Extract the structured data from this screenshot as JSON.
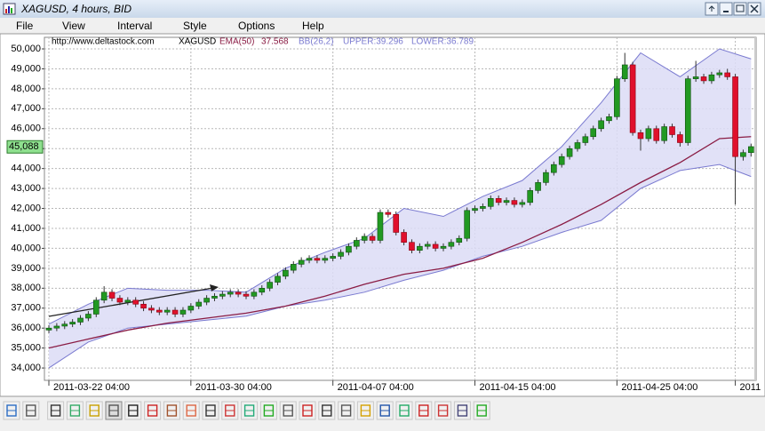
{
  "window": {
    "title": "XAGUSD, 4 hours, BID"
  },
  "menu": [
    "File",
    "View",
    "Interval",
    "Style",
    "Options",
    "Help"
  ],
  "chart_data": {
    "type": "candlestick",
    "info": {
      "url": "http://www.deltastock.com",
      "symbol": "XAGUSD",
      "ema_value": 37.568,
      "bb_label": "BB(26,2)",
      "upper_label": "UPPER:39.296",
      "lower_label": "LOWER:36.789"
    },
    "categories": [
      "2011-03-22 04:00",
      null,
      null,
      null,
      null,
      null,
      null,
      null,
      null,
      null,
      null,
      null,
      null,
      null,
      null,
      null,
      null,
      null,
      "2011-03-30 04:00",
      null,
      null,
      null,
      null,
      null,
      null,
      null,
      null,
      null,
      null,
      null,
      null,
      null,
      null,
      null,
      null,
      null,
      "2011-04-07 04:00",
      null,
      null,
      null,
      null,
      null,
      null,
      null,
      null,
      null,
      null,
      null,
      null,
      null,
      null,
      null,
      null,
      null,
      "2011-04-15 04:00",
      null,
      null,
      null,
      null,
      null,
      null,
      null,
      null,
      null,
      null,
      null,
      null,
      null,
      null,
      null,
      null,
      null,
      "2011-04-25 04:00",
      null,
      null,
      null,
      null,
      null,
      null,
      null,
      null,
      null,
      null,
      null,
      null,
      null,
      null,
      "2011",
      null,
      null
    ],
    "open": [
      35900,
      36000,
      36100,
      36200,
      36300,
      36500,
      36700,
      37400,
      37800,
      37500,
      37300,
      37400,
      37200,
      37000,
      36900,
      36800,
      36900,
      36700,
      36900,
      37100,
      37300,
      37500,
      37600,
      37700,
      37800,
      37700,
      37600,
      37800,
      38000,
      38300,
      38600,
      38900,
      39200,
      39400,
      39500,
      39400,
      39500,
      39600,
      39800,
      40100,
      40400,
      40600,
      40400,
      41800,
      41700,
      40800,
      40300,
      39900,
      40100,
      40200,
      40000,
      40100,
      40300,
      40500,
      41900,
      42000,
      42100,
      42500,
      42300,
      42400,
      42200,
      42300,
      42900,
      43300,
      43800,
      44200,
      44600,
      45000,
      45300,
      45600,
      46000,
      46400,
      46600,
      48500,
      49200,
      45800,
      45500,
      46000,
      45400,
      46100,
      45700,
      45300,
      48500,
      48600,
      48400,
      48700,
      48800,
      48600,
      44600,
      44800
    ],
    "high": [
      36150,
      36250,
      36350,
      36450,
      36650,
      36850,
      37550,
      38100,
      37950,
      37650,
      37550,
      37550,
      37350,
      37150,
      37050,
      37050,
      37050,
      37050,
      37250,
      37450,
      37650,
      37750,
      37850,
      37950,
      37950,
      37850,
      37950,
      38150,
      38450,
      38750,
      39050,
      39350,
      39550,
      39650,
      39650,
      39650,
      39750,
      39950,
      40250,
      40550,
      40750,
      40750,
      41950,
      41950,
      41850,
      40950,
      40450,
      40250,
      40350,
      40350,
      40250,
      40450,
      40650,
      42050,
      42150,
      42250,
      42650,
      42650,
      42550,
      42550,
      42450,
      43050,
      43450,
      43950,
      44350,
      44750,
      45150,
      45450,
      45750,
      46150,
      46550,
      46750,
      48650,
      49800,
      49350,
      45950,
      46150,
      46150,
      46250,
      46250,
      45850,
      48650,
      49400,
      48750,
      48850,
      48950,
      49000,
      48750,
      44950,
      45250
    ],
    "low": [
      35750,
      35850,
      35950,
      36050,
      36150,
      36350,
      36550,
      37250,
      37350,
      37150,
      37150,
      37050,
      36850,
      36750,
      36650,
      36650,
      36550,
      36550,
      36750,
      36950,
      37150,
      37350,
      37450,
      37550,
      37550,
      37450,
      37450,
      37650,
      37850,
      38150,
      38450,
      38750,
      39050,
      39250,
      39250,
      39250,
      39350,
      39450,
      39650,
      39950,
      40250,
      40250,
      40250,
      41550,
      40650,
      40150,
      39750,
      39750,
      39950,
      39850,
      39850,
      39950,
      40150,
      40350,
      41750,
      41850,
      41950,
      42150,
      42150,
      42050,
      42050,
      42150,
      42750,
      43150,
      43650,
      44050,
      44450,
      44850,
      45150,
      45450,
      45850,
      46250,
      46450,
      48350,
      45650,
      44900,
      45350,
      45250,
      45250,
      45550,
      45100,
      45150,
      48350,
      48250,
      48250,
      48550,
      48450,
      42200,
      44400,
      44600
    ],
    "close": [
      36000,
      36100,
      36200,
      36300,
      36500,
      36700,
      37400,
      37800,
      37500,
      37300,
      37400,
      37200,
      37000,
      36900,
      36800,
      36900,
      36700,
      36900,
      37100,
      37300,
      37500,
      37600,
      37700,
      37800,
      37700,
      37600,
      37800,
      38000,
      38300,
      38600,
      38900,
      39200,
      39400,
      39500,
      39400,
      39500,
      39600,
      39800,
      40100,
      40400,
      40600,
      40400,
      41800,
      41700,
      40800,
      40300,
      39900,
      40100,
      40200,
      40000,
      40100,
      40300,
      40500,
      41900,
      42000,
      42100,
      42500,
      42300,
      42400,
      42200,
      42300,
      42900,
      43300,
      43800,
      44200,
      44600,
      45000,
      45300,
      45600,
      46000,
      46400,
      46600,
      48500,
      49200,
      45800,
      45500,
      46000,
      45400,
      46100,
      45700,
      45300,
      48500,
      48600,
      48400,
      48700,
      48800,
      48600,
      44600,
      44800,
      45100
    ],
    "up_color": "#229922",
    "down_color": "#e0102c",
    "series": [
      {
        "name": "EMA(50)",
        "color": "#8a1c44",
        "x": [
          0,
          5,
          10,
          15,
          20,
          25,
          30,
          35,
          40,
          45,
          50,
          55,
          60,
          65,
          70,
          75,
          80,
          85,
          89
        ],
        "values": [
          35000,
          35450,
          35900,
          36250,
          36500,
          36750,
          37100,
          37600,
          38200,
          38700,
          39000,
          39500,
          40300,
          41200,
          42200,
          43300,
          44300,
          45500,
          45600
        ]
      }
    ],
    "bands": {
      "color": "#7a7ad0",
      "fill": "#dcdcf6",
      "x": [
        0,
        5,
        10,
        15,
        20,
        25,
        30,
        35,
        40,
        45,
        50,
        55,
        60,
        65,
        70,
        75,
        80,
        85,
        89
      ],
      "upper": [
        36200,
        37200,
        38000,
        37900,
        37900,
        37800,
        39000,
        39800,
        40500,
        42000,
        41600,
        42600,
        43400,
        45100,
        47300,
        49800,
        48600,
        50000,
        49500
      ],
      "lower": [
        34000,
        35300,
        36000,
        36200,
        36400,
        36600,
        37100,
        37400,
        37800,
        38400,
        38900,
        39600,
        40100,
        40800,
        41400,
        43000,
        43900,
        44200,
        43600
      ]
    },
    "current_price": {
      "value": 45088,
      "label": "45,088"
    },
    "ylim": [
      33380,
      50580
    ],
    "yticks": [
      {
        "value": 34000,
        "label": "34,000"
      },
      {
        "value": 35000,
        "label": "35,000"
      },
      {
        "value": 36000,
        "label": "36,000"
      },
      {
        "value": 37000,
        "label": "37,000"
      },
      {
        "value": 38000,
        "label": "38,000"
      },
      {
        "value": 39000,
        "label": "39,000"
      },
      {
        "value": 40000,
        "label": "40,000"
      },
      {
        "value": 41000,
        "label": "41,000"
      },
      {
        "value": 42000,
        "label": "42,000"
      },
      {
        "value": 43000,
        "label": "43,000"
      },
      {
        "value": 44000,
        "label": "44,000"
      },
      {
        "value": 45000,
        "label": "45,000"
      },
      {
        "value": 46000,
        "label": "46,000"
      },
      {
        "value": 47000,
        "label": "47,000"
      },
      {
        "value": 48000,
        "label": "48,000"
      },
      {
        "value": 49000,
        "label": "49,000"
      },
      {
        "value": 50000,
        "label": "50,000"
      }
    ],
    "grid": true
  }
}
